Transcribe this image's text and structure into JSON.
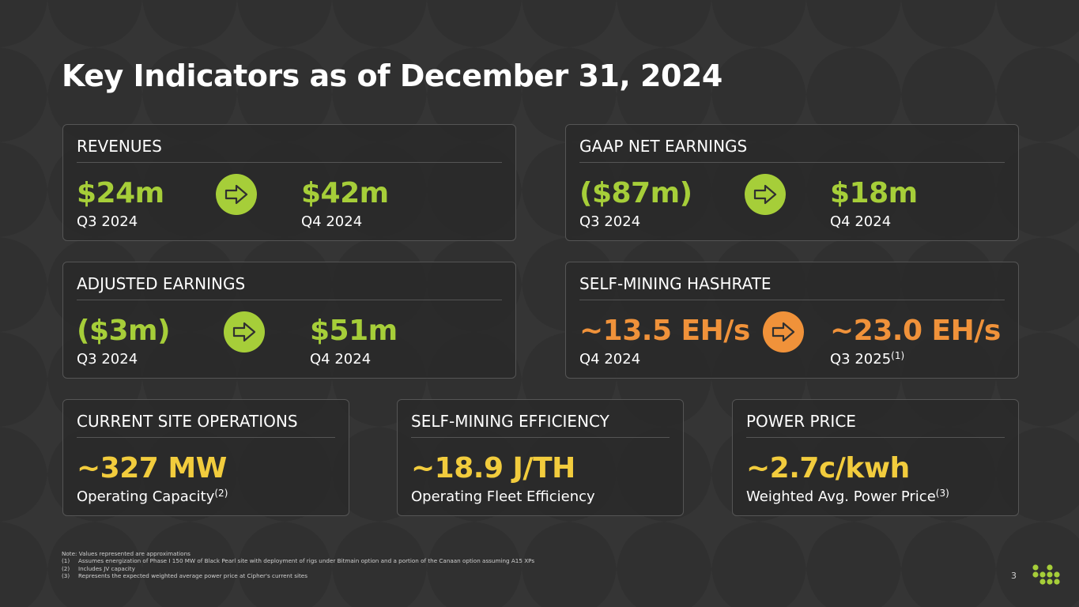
{
  "page": {
    "title": "Key Indicators as of December 31, 2024",
    "page_number": "3"
  },
  "colors": {
    "background": "#303030",
    "green": "#a6ce39",
    "orange": "#f0923a",
    "yellow": "#f2cc3d"
  },
  "cards": {
    "revenues": {
      "label": "REVENUES",
      "from_value": "$24m",
      "from_period": "Q3 2024",
      "to_value": "$42m",
      "to_period": "Q4 2024",
      "icon": "arrow-right-icon"
    },
    "gaap": {
      "label": "GAAP NET EARNINGS",
      "from_value": "($87m)",
      "from_period": "Q3 2024",
      "to_value": "$18m",
      "to_period": "Q4 2024",
      "icon": "arrow-right-icon"
    },
    "adjusted": {
      "label": "ADJUSTED EARNINGS",
      "from_value": "($3m)",
      "from_period": "Q3 2024",
      "to_value": "$51m",
      "to_period": "Q4 2024",
      "icon": "arrow-right-icon"
    },
    "hashrate": {
      "label": "SELF-MINING HASHRATE",
      "from_value": "~13.5 EH/s",
      "from_period": "Q4 2024",
      "to_value": "~23.0 EH/s",
      "to_period": "Q3 2025",
      "to_footnote": "(1)",
      "icon": "arrow-right-icon"
    },
    "site_ops": {
      "label": "CURRENT SITE OPERATIONS",
      "value": "~327 MW",
      "caption": "Operating Capacity",
      "footnote": "(2)"
    },
    "efficiency": {
      "label": "SELF-MINING EFFICIENCY",
      "value": "~18.9 J/TH",
      "caption": "Operating Fleet Efficiency"
    },
    "power": {
      "label": "POWER PRICE",
      "value": "~2.7c/kwh",
      "caption": "Weighted Avg. Power Price",
      "footnote": "(3)"
    }
  },
  "notes": {
    "heading": "Note: Values represented are approximations",
    "items": [
      {
        "num": "(1)",
        "text": "Assumes energization of Phase I 150 MW of Black Pearl site with deployment of rigs under Bitmain option and a portion of the Canaan option assuming A15 XPs"
      },
      {
        "num": "(2)",
        "text": "Includes JV capacity"
      },
      {
        "num": "(3)",
        "text": "Represents the expected weighted average power price at Cipher's current sites"
      }
    ]
  }
}
